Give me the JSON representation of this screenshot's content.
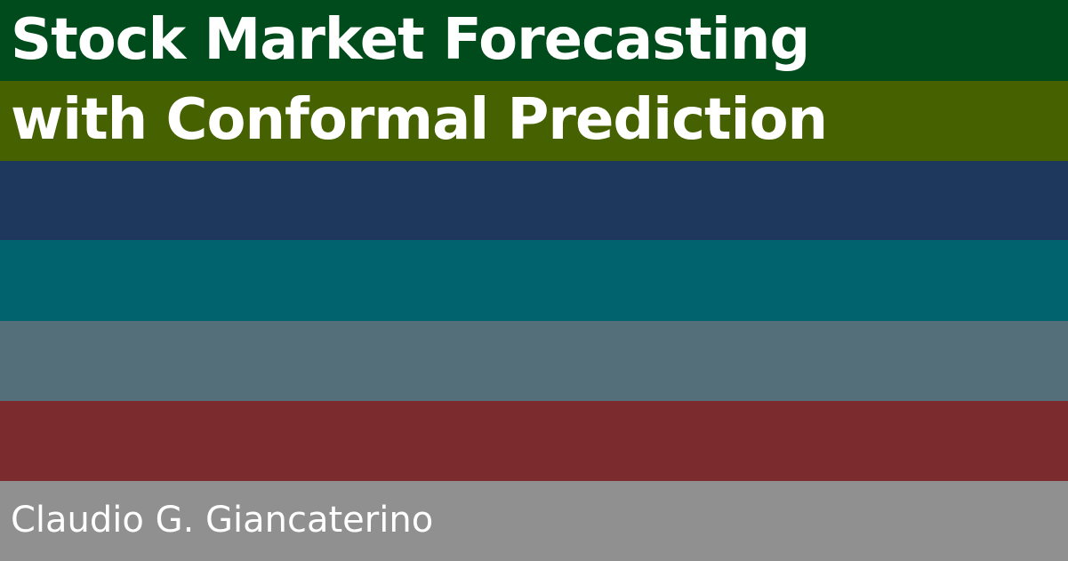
{
  "title": {
    "line1": "Stock Market Forecasting",
    "line2": "with Conformal Prediction"
  },
  "author": "Claudio G. Giancaterino",
  "stripe_colors": [
    "#004b1c",
    "#466200",
    "#1d375d",
    "#00636e",
    "#546f7a",
    "#7b2a2e",
    "#909090"
  ]
}
